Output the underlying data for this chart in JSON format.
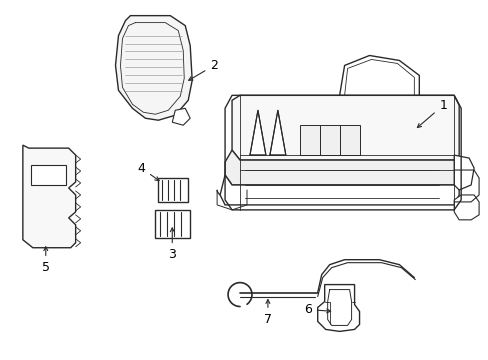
{
  "background_color": "#ffffff",
  "line_color": "#2a2a2a",
  "line_width": 1.0,
  "label_fontsize": 9,
  "figsize": [
    4.89,
    3.6
  ],
  "dpi": 100,
  "xlim": [
    0,
    489
  ],
  "ylim": [
    0,
    360
  ]
}
